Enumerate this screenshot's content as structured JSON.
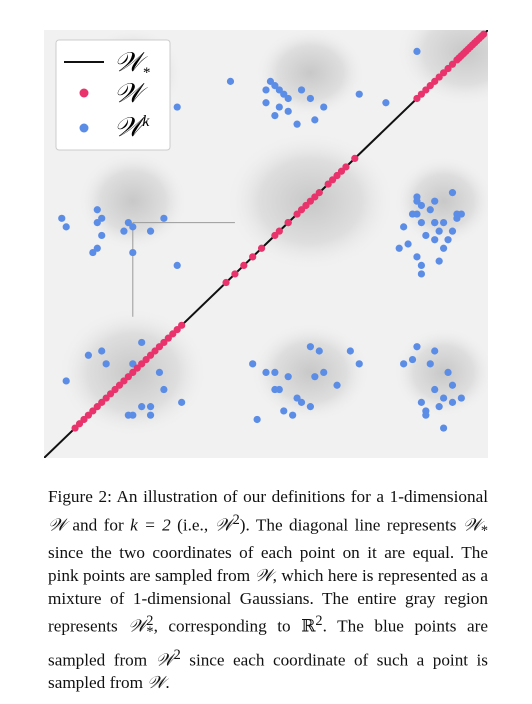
{
  "figure": {
    "legend": [
      {
        "label": "𝒲",
        "sub": "*",
        "sup": "",
        "marker": "line",
        "color": "#111111"
      },
      {
        "label": "𝒲",
        "sub": "",
        "sup": "",
        "marker": "dot",
        "color": "#e8336c"
      },
      {
        "label": "𝒲",
        "sub": "",
        "sup": "k",
        "marker": "dot",
        "color": "#5b8de6"
      }
    ],
    "colors": {
      "pink": "#e8336c",
      "blue": "#5b8de6",
      "diagonal": "#111111",
      "background": "#f1f1f1"
    }
  },
  "chart_data": {
    "type": "scatter",
    "xlim": [
      0,
      1
    ],
    "ylim": [
      0,
      1
    ],
    "grid": false,
    "legend_position": "top-left",
    "series": [
      {
        "name": "𝒲*",
        "kind": "line",
        "x": [
          0,
          1
        ],
        "y": [
          0,
          1
        ]
      },
      {
        "name": "𝒲",
        "kind": "points",
        "x": [
          0.93,
          0.94,
          0.95,
          0.96,
          0.97,
          0.98,
          0.99,
          0.935,
          0.945,
          0.955,
          0.965,
          0.975,
          0.985,
          0.84,
          0.85,
          0.86,
          0.87,
          0.88,
          0.89,
          0.9,
          0.91,
          0.92,
          0.52,
          0.55,
          0.58,
          0.61,
          0.64,
          0.66,
          0.68,
          0.7,
          0.57,
          0.6,
          0.62,
          0.65,
          0.67,
          0.47,
          0.49,
          0.53,
          0.55,
          0.59,
          0.43,
          0.45,
          0.41,
          0.07,
          0.09,
          0.11,
          0.13,
          0.15,
          0.17,
          0.19,
          0.21,
          0.23,
          0.25,
          0.27,
          0.29,
          0.31,
          0.12,
          0.14,
          0.16,
          0.18,
          0.2,
          0.22,
          0.24,
          0.26,
          0.08,
          0.1,
          0.28,
          0.3
        ],
        "y": [
          0.93,
          0.94,
          0.95,
          0.96,
          0.97,
          0.98,
          0.99,
          0.935,
          0.945,
          0.955,
          0.965,
          0.975,
          0.985,
          0.84,
          0.85,
          0.86,
          0.87,
          0.88,
          0.89,
          0.9,
          0.91,
          0.92,
          0.52,
          0.55,
          0.58,
          0.61,
          0.64,
          0.66,
          0.68,
          0.7,
          0.57,
          0.6,
          0.62,
          0.65,
          0.67,
          0.47,
          0.49,
          0.53,
          0.55,
          0.59,
          0.43,
          0.45,
          0.41,
          0.07,
          0.09,
          0.11,
          0.13,
          0.15,
          0.17,
          0.19,
          0.21,
          0.23,
          0.25,
          0.27,
          0.29,
          0.31,
          0.12,
          0.14,
          0.16,
          0.18,
          0.2,
          0.22,
          0.24,
          0.26,
          0.08,
          0.1,
          0.28,
          0.3
        ]
      },
      {
        "name": "𝒲^k",
        "kind": "points",
        "x": [
          0.42,
          0.5,
          0.51,
          0.52,
          0.53,
          0.54,
          0.55,
          0.5,
          0.53,
          0.58,
          0.6,
          0.55,
          0.52,
          0.57,
          0.61,
          0.63,
          0.71,
          0.23,
          0.3,
          0.84,
          0.77,
          0.04,
          0.12,
          0.12,
          0.13,
          0.13,
          0.12,
          0.11,
          0.18,
          0.2,
          0.19,
          0.24,
          0.27,
          0.05,
          0.2,
          0.3,
          0.84,
          0.85,
          0.84,
          0.88,
          0.87,
          0.85,
          0.92,
          0.93,
          0.9,
          0.89,
          0.88,
          0.86,
          0.91,
          0.9,
          0.84,
          0.85,
          0.82,
          0.88,
          0.81,
          0.92,
          0.94,
          0.89,
          0.85,
          0.83,
          0.84,
          0.88,
          0.8,
          0.93,
          0.47,
          0.5,
          0.52,
          0.55,
          0.53,
          0.57,
          0.6,
          0.54,
          0.58,
          0.61,
          0.63,
          0.71,
          0.69,
          0.6,
          0.66,
          0.52,
          0.56,
          0.62,
          0.48,
          0.1,
          0.13,
          0.14,
          0.22,
          0.27,
          0.24,
          0.2,
          0.19,
          0.24,
          0.31,
          0.22,
          0.2,
          0.26,
          0.05,
          0.83,
          0.87,
          0.88,
          0.91,
          0.92,
          0.89,
          0.85,
          0.86,
          0.9,
          0.92,
          0.94,
          0.88,
          0.86,
          0.9,
          0.81,
          0.84
        ],
        "y": [
          0.88,
          0.86,
          0.88,
          0.87,
          0.86,
          0.85,
          0.84,
          0.83,
          0.82,
          0.86,
          0.84,
          0.81,
          0.8,
          0.78,
          0.79,
          0.82,
          0.85,
          0.88,
          0.82,
          0.95,
          0.83,
          0.56,
          0.58,
          0.55,
          0.56,
          0.52,
          0.49,
          0.48,
          0.53,
          0.54,
          0.55,
          0.53,
          0.56,
          0.54,
          0.48,
          0.45,
          0.61,
          0.59,
          0.57,
          0.6,
          0.58,
          0.55,
          0.62,
          0.57,
          0.55,
          0.53,
          0.51,
          0.52,
          0.51,
          0.49,
          0.47,
          0.45,
          0.5,
          0.55,
          0.54,
          0.53,
          0.57,
          0.46,
          0.43,
          0.57,
          0.6,
          0.55,
          0.49,
          0.56,
          0.22,
          0.2,
          0.2,
          0.19,
          0.16,
          0.14,
          0.12,
          0.11,
          0.13,
          0.19,
          0.2,
          0.22,
          0.25,
          0.26,
          0.17,
          0.16,
          0.1,
          0.25,
          0.09,
          0.24,
          0.25,
          0.22,
          0.12,
          0.16,
          0.1,
          0.1,
          0.1,
          0.12,
          0.13,
          0.27,
          0.22,
          0.2,
          0.18,
          0.23,
          0.22,
          0.25,
          0.2,
          0.17,
          0.12,
          0.13,
          0.11,
          0.14,
          0.13,
          0.14,
          0.16,
          0.1,
          0.07,
          0.22,
          0.26
        ]
      }
    ]
  },
  "caption": {
    "prefix": "Figure 2:  An illustration of our definitions for a 1-dimensional ",
    "w1": "𝒲",
    "t1": " and for ",
    "k_eq": "k = 2",
    "t2": " (i.e., ",
    "w2": "𝒲",
    "w2_sup": "2",
    "t3": ").  The diagonal line represents ",
    "w3": "𝒲",
    "w3_sub": "*",
    "t4": " since the two coordinates of each point on it are equal. The pink points are sampled from ",
    "w4": "𝒲",
    "t5": ", which here is represented as a mixture of 1-dimensional Gaussians. The entire gray region represents ",
    "w5": "𝒲",
    "w5_sup": "2",
    "w5_sub": "*",
    "t6": ", corresponding to ",
    "r": "ℝ",
    "r_sup": "2",
    "t7": ". The blue points are sampled from ",
    "w6": "𝒲",
    "w6_sup": "2",
    "t8": " since each coordinate of such a point is sampled from ",
    "w7": "𝒲",
    "t9": "."
  }
}
